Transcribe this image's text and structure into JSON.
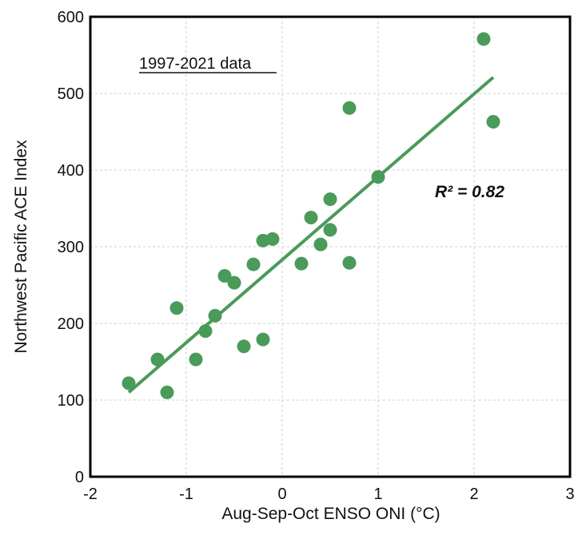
{
  "chart_data": {
    "type": "scatter",
    "xlabel": "Aug-Sep-Oct ENSO ONI (°C)",
    "ylabel": "Northwest Pacific ACE Index",
    "xlim": [
      -2,
      3
    ],
    "ylim": [
      0,
      600
    ],
    "x_ticks": [
      -2,
      -1,
      0,
      1,
      2,
      3
    ],
    "y_ticks": [
      0,
      100,
      200,
      300,
      400,
      500,
      600
    ],
    "x_tick_labels": [
      "-2",
      "-1",
      "0",
      "1",
      "2",
      "3"
    ],
    "y_tick_labels": [
      "0",
      "100",
      "200",
      "300",
      "400",
      "500",
      "600"
    ],
    "grid": true,
    "annotation": "1997-2021 data",
    "r2_label": "R² = 0.82",
    "marker_color": "#4a9a5a",
    "trendline_color": "#4a9a5a",
    "points": [
      {
        "x": -1.6,
        "y": 122
      },
      {
        "x": -1.3,
        "y": 153
      },
      {
        "x": -1.2,
        "y": 110
      },
      {
        "x": -1.1,
        "y": 220
      },
      {
        "x": -0.9,
        "y": 153
      },
      {
        "x": -0.8,
        "y": 190
      },
      {
        "x": -0.7,
        "y": 210
      },
      {
        "x": -0.6,
        "y": 262
      },
      {
        "x": -0.5,
        "y": 253
      },
      {
        "x": -0.4,
        "y": 170
      },
      {
        "x": -0.3,
        "y": 277
      },
      {
        "x": -0.2,
        "y": 308
      },
      {
        "x": -0.2,
        "y": 179
      },
      {
        "x": -0.1,
        "y": 310
      },
      {
        "x": 0.2,
        "y": 278
      },
      {
        "x": 0.3,
        "y": 338
      },
      {
        "x": 0.4,
        "y": 303
      },
      {
        "x": 0.5,
        "y": 322
      },
      {
        "x": 0.5,
        "y": 362
      },
      {
        "x": 0.7,
        "y": 481
      },
      {
        "x": 0.7,
        "y": 279
      },
      {
        "x": 1.0,
        "y": 391
      },
      {
        "x": 2.1,
        "y": 571
      },
      {
        "x": 2.2,
        "y": 463
      }
    ],
    "trendline": {
      "x": [
        -1.6,
        2.2
      ],
      "y": [
        110,
        521
      ]
    }
  }
}
